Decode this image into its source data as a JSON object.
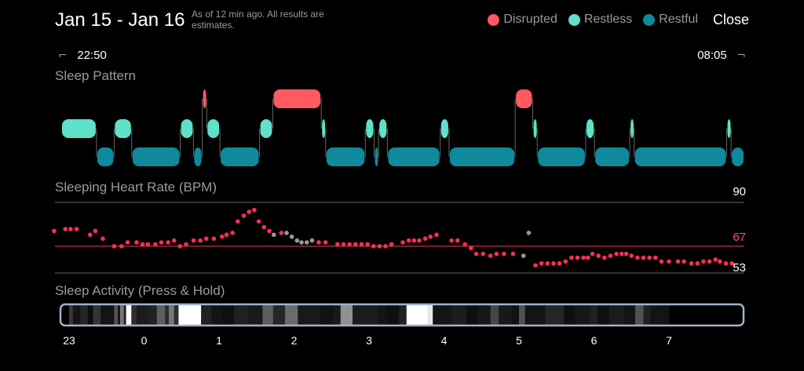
{
  "header": {
    "title": "Jan 15 - Jan 16",
    "subtitle": "As of 12 min ago. All results are estimates.",
    "close_label": "Close"
  },
  "legend": [
    {
      "label": "Disrupted",
      "color": "#ff5a5f"
    },
    {
      "label": "Restless",
      "color": "#5fe0c8"
    },
    {
      "label": "Restful",
      "color": "#0e8a9c"
    }
  ],
  "times": {
    "start": "22:50",
    "end": "08:05"
  },
  "sleep_pattern": {
    "label": "Sleep Pattern",
    "segments": [
      {
        "state": "restless",
        "start": 0.0,
        "end": 0.08
      },
      {
        "state": "restful",
        "start": 0.08,
        "end": 0.12
      },
      {
        "state": "restless",
        "start": 0.12,
        "end": 0.16
      },
      {
        "state": "restful",
        "start": 0.16,
        "end": 0.27
      },
      {
        "state": "restless",
        "start": 0.27,
        "end": 0.3
      },
      {
        "state": "restful",
        "start": 0.3,
        "end": 0.32
      },
      {
        "state": "disrupted",
        "start": 0.32,
        "end": 0.33
      },
      {
        "state": "restless",
        "start": 0.33,
        "end": 0.36
      },
      {
        "state": "restful",
        "start": 0.36,
        "end": 0.45
      },
      {
        "state": "restless",
        "start": 0.45,
        "end": 0.48
      },
      {
        "state": "disrupted",
        "start": 0.48,
        "end": 0.59
      },
      {
        "state": "restless",
        "start": 0.59,
        "end": 0.6
      },
      {
        "state": "restful",
        "start": 0.6,
        "end": 0.69
      },
      {
        "state": "restless",
        "start": 0.69,
        "end": 0.71
      },
      {
        "state": "restful",
        "start": 0.71,
        "end": 0.72
      },
      {
        "state": "restless",
        "start": 0.72,
        "end": 0.74
      },
      {
        "state": "restful",
        "start": 0.74,
        "end": 0.86
      },
      {
        "state": "restless",
        "start": 0.86,
        "end": 0.88
      },
      {
        "state": "restful",
        "start": 0.88,
        "end": 1.03
      },
      {
        "state": "disrupted",
        "start": 1.03,
        "end": 1.07
      },
      {
        "state": "restless",
        "start": 1.07,
        "end": 1.08
      },
      {
        "state": "restful",
        "start": 1.08,
        "end": 1.19
      },
      {
        "state": "restless",
        "start": 1.19,
        "end": 1.21
      },
      {
        "state": "restful",
        "start": 1.21,
        "end": 1.29
      },
      {
        "state": "restless",
        "start": 1.29,
        "end": 1.3
      },
      {
        "state": "restful",
        "start": 1.3,
        "end": 1.51
      },
      {
        "state": "restless",
        "start": 1.51,
        "end": 1.52
      },
      {
        "state": "restful",
        "start": 1.52,
        "end": 1.55
      }
    ]
  },
  "heart_rate": {
    "label": "Sleeping Heart Rate (BPM)",
    "max_label": "90",
    "avg_label": "67",
    "min_label": "53",
    "max": 90,
    "avg": 67,
    "min": 53,
    "points": [
      {
        "t": 22.8,
        "bpm": 75
      },
      {
        "t": 22.95,
        "bpm": 76
      },
      {
        "t": 23.02,
        "bpm": 76
      },
      {
        "t": 23.1,
        "bpm": 76
      },
      {
        "t": 23.28,
        "bpm": 73
      },
      {
        "t": 23.35,
        "bpm": 75
      },
      {
        "t": 23.45,
        "bpm": 71
      },
      {
        "t": 23.6,
        "bpm": 67
      },
      {
        "t": 23.7,
        "bpm": 67
      },
      {
        "t": 23.78,
        "bpm": 69
      },
      {
        "t": 23.9,
        "bpm": 69
      },
      {
        "t": 23.98,
        "bpm": 68
      },
      {
        "t": 24.05,
        "bpm": 68
      },
      {
        "t": 24.15,
        "bpm": 68
      },
      {
        "t": 24.23,
        "bpm": 69
      },
      {
        "t": 24.32,
        "bpm": 69
      },
      {
        "t": 24.4,
        "bpm": 70
      },
      {
        "t": 24.48,
        "bpm": 67
      },
      {
        "t": 24.56,
        "bpm": 68
      },
      {
        "t": 24.66,
        "bpm": 70
      },
      {
        "t": 24.75,
        "bpm": 70
      },
      {
        "t": 24.83,
        "bpm": 71
      },
      {
        "t": 24.93,
        "bpm": 71
      },
      {
        "t": 25.04,
        "bpm": 72
      },
      {
        "t": 25.1,
        "bpm": 73
      },
      {
        "t": 25.18,
        "bpm": 74
      },
      {
        "t": 25.25,
        "bpm": 80
      },
      {
        "t": 25.33,
        "bpm": 83
      },
      {
        "t": 25.4,
        "bpm": 85
      },
      {
        "t": 25.47,
        "bpm": 86
      },
      {
        "t": 25.53,
        "bpm": 80
      },
      {
        "t": 25.6,
        "bpm": 77
      },
      {
        "t": 25.67,
        "bpm": 75
      },
      {
        "t": 25.73,
        "bpm": 73,
        "grey": true
      },
      {
        "t": 25.83,
        "bpm": 74
      },
      {
        "t": 25.9,
        "bpm": 74,
        "grey": true
      },
      {
        "t": 25.97,
        "bpm": 72,
        "grey": true
      },
      {
        "t": 26.04,
        "bpm": 70,
        "grey": true
      },
      {
        "t": 26.1,
        "bpm": 69,
        "grey": true
      },
      {
        "t": 26.17,
        "bpm": 69,
        "grey": true
      },
      {
        "t": 26.24,
        "bpm": 70,
        "grey": true
      },
      {
        "t": 26.33,
        "bpm": 69
      },
      {
        "t": 26.42,
        "bpm": 69
      },
      {
        "t": 26.58,
        "bpm": 68
      },
      {
        "t": 26.66,
        "bpm": 68
      },
      {
        "t": 26.74,
        "bpm": 68
      },
      {
        "t": 26.82,
        "bpm": 68
      },
      {
        "t": 26.9,
        "bpm": 68
      },
      {
        "t": 26.98,
        "bpm": 68
      },
      {
        "t": 27.06,
        "bpm": 67
      },
      {
        "t": 27.14,
        "bpm": 67
      },
      {
        "t": 27.22,
        "bpm": 67
      },
      {
        "t": 27.3,
        "bpm": 68
      },
      {
        "t": 27.45,
        "bpm": 69
      },
      {
        "t": 27.53,
        "bpm": 70
      },
      {
        "t": 27.6,
        "bpm": 70
      },
      {
        "t": 27.67,
        "bpm": 70
      },
      {
        "t": 27.75,
        "bpm": 71
      },
      {
        "t": 27.82,
        "bpm": 72
      },
      {
        "t": 27.9,
        "bpm": 73
      },
      {
        "t": 28.1,
        "bpm": 70
      },
      {
        "t": 28.18,
        "bpm": 70
      },
      {
        "t": 28.28,
        "bpm": 68
      },
      {
        "t": 28.36,
        "bpm": 66
      },
      {
        "t": 28.43,
        "bpm": 63
      },
      {
        "t": 28.52,
        "bpm": 63
      },
      {
        "t": 28.62,
        "bpm": 62
      },
      {
        "t": 28.7,
        "bpm": 63
      },
      {
        "t": 28.8,
        "bpm": 63
      },
      {
        "t": 28.92,
        "bpm": 63
      },
      {
        "t": 29.06,
        "bpm": 62,
        "grey": true
      },
      {
        "t": 29.13,
        "bpm": 74,
        "grey": true
      },
      {
        "t": 29.22,
        "bpm": 57
      },
      {
        "t": 29.3,
        "bpm": 58
      },
      {
        "t": 29.38,
        "bpm": 58
      },
      {
        "t": 29.46,
        "bpm": 58
      },
      {
        "t": 29.54,
        "bpm": 58
      },
      {
        "t": 29.62,
        "bpm": 59
      },
      {
        "t": 29.7,
        "bpm": 61
      },
      {
        "t": 29.78,
        "bpm": 61
      },
      {
        "t": 29.86,
        "bpm": 61
      },
      {
        "t": 29.92,
        "bpm": 61
      },
      {
        "t": 29.98,
        "bpm": 63
      },
      {
        "t": 30.06,
        "bpm": 62
      },
      {
        "t": 30.14,
        "bpm": 61
      },
      {
        "t": 30.22,
        "bpm": 62
      },
      {
        "t": 30.3,
        "bpm": 63
      },
      {
        "t": 30.37,
        "bpm": 63
      },
      {
        "t": 30.43,
        "bpm": 63
      },
      {
        "t": 30.5,
        "bpm": 62
      },
      {
        "t": 30.58,
        "bpm": 61
      },
      {
        "t": 30.66,
        "bpm": 61
      },
      {
        "t": 30.74,
        "bpm": 61
      },
      {
        "t": 30.82,
        "bpm": 61
      },
      {
        "t": 30.9,
        "bpm": 59
      },
      {
        "t": 31.0,
        "bpm": 59
      },
      {
        "t": 31.12,
        "bpm": 59
      },
      {
        "t": 31.2,
        "bpm": 59
      },
      {
        "t": 31.3,
        "bpm": 58
      },
      {
        "t": 31.38,
        "bpm": 58
      },
      {
        "t": 31.46,
        "bpm": 59
      },
      {
        "t": 31.54,
        "bpm": 59
      },
      {
        "t": 31.62,
        "bpm": 60
      },
      {
        "t": 31.68,
        "bpm": 59
      },
      {
        "t": 31.76,
        "bpm": 58
      },
      {
        "t": 31.84,
        "bpm": 58
      }
    ]
  },
  "sleep_activity": {
    "label": "Sleep Activity (Press & Hold)",
    "hours": [
      "23",
      "0",
      "1",
      "2",
      "3",
      "4",
      "5",
      "6",
      "7"
    ],
    "bands": [
      {
        "start": 0.0,
        "end": 0.05,
        "level": 0.2
      },
      {
        "start": 0.05,
        "end": 0.15,
        "level": 0.05
      },
      {
        "start": 0.15,
        "end": 0.25,
        "level": 0.12
      },
      {
        "start": 0.25,
        "end": 0.32,
        "level": 0.02
      },
      {
        "start": 0.32,
        "end": 0.42,
        "level": 0.18
      },
      {
        "start": 0.42,
        "end": 0.6,
        "level": 0.05
      },
      {
        "start": 0.6,
        "end": 0.65,
        "level": 0.3
      },
      {
        "start": 0.65,
        "end": 0.68,
        "level": 0.05
      },
      {
        "start": 0.68,
        "end": 0.73,
        "level": 0.45
      },
      {
        "start": 0.73,
        "end": 0.76,
        "level": 0.1
      },
      {
        "start": 0.76,
        "end": 0.83,
        "level": 1.0
      },
      {
        "start": 0.83,
        "end": 0.9,
        "level": 0.15
      },
      {
        "start": 0.9,
        "end": 1.05,
        "level": 0.08
      },
      {
        "start": 1.05,
        "end": 1.17,
        "level": 0.1
      },
      {
        "start": 1.17,
        "end": 1.28,
        "level": 0.35
      },
      {
        "start": 1.28,
        "end": 1.33,
        "level": 0.15
      },
      {
        "start": 1.33,
        "end": 1.4,
        "level": 0.45
      },
      {
        "start": 1.4,
        "end": 1.46,
        "level": 0.15
      },
      {
        "start": 1.46,
        "end": 1.55,
        "level": 1.0
      },
      {
        "start": 1.55,
        "end": 1.76,
        "level": 1.0
      },
      {
        "start": 1.76,
        "end": 1.9,
        "level": 0.1
      },
      {
        "start": 1.9,
        "end": 2.05,
        "level": 0.05
      },
      {
        "start": 2.05,
        "end": 2.2,
        "level": 0.03
      },
      {
        "start": 2.2,
        "end": 2.38,
        "level": 0.1
      },
      {
        "start": 2.38,
        "end": 2.58,
        "level": 0.07
      },
      {
        "start": 2.58,
        "end": 2.72,
        "level": 0.35
      },
      {
        "start": 2.72,
        "end": 2.88,
        "level": 0.12
      },
      {
        "start": 2.88,
        "end": 3.05,
        "level": 0.4
      },
      {
        "start": 3.05,
        "end": 3.35,
        "level": 0.07
      },
      {
        "start": 3.35,
        "end": 3.52,
        "level": 0.04
      },
      {
        "start": 3.52,
        "end": 3.62,
        "level": 0.07
      },
      {
        "start": 3.62,
        "end": 3.78,
        "level": 0.55
      },
      {
        "start": 3.78,
        "end": 4.12,
        "level": 0.08
      },
      {
        "start": 4.12,
        "end": 4.24,
        "level": 0.05
      },
      {
        "start": 4.24,
        "end": 4.4,
        "level": 0.03
      },
      {
        "start": 4.4,
        "end": 4.5,
        "level": 0.1
      },
      {
        "start": 4.5,
        "end": 4.78,
        "level": 1.0
      },
      {
        "start": 4.78,
        "end": 4.85,
        "level": 0.9
      },
      {
        "start": 4.85,
        "end": 5.1,
        "level": 0.05
      },
      {
        "start": 5.1,
        "end": 5.3,
        "level": 0.08
      },
      {
        "start": 5.3,
        "end": 5.45,
        "level": 0.03
      },
      {
        "start": 5.45,
        "end": 5.62,
        "level": 0.06
      },
      {
        "start": 5.62,
        "end": 5.73,
        "level": 0.25
      },
      {
        "start": 5.73,
        "end": 5.9,
        "level": 0.07
      },
      {
        "start": 5.9,
        "end": 6.0,
        "level": 0.04
      },
      {
        "start": 6.0,
        "end": 6.08,
        "level": 0.3
      },
      {
        "start": 6.08,
        "end": 6.35,
        "level": 0.05
      },
      {
        "start": 6.35,
        "end": 6.6,
        "level": 0.12
      },
      {
        "start": 6.6,
        "end": 6.75,
        "level": 0.03
      },
      {
        "start": 6.75,
        "end": 6.95,
        "level": 0.06
      },
      {
        "start": 6.95,
        "end": 7.05,
        "level": 0.1
      },
      {
        "start": 7.05,
        "end": 7.2,
        "level": 0.03
      },
      {
        "start": 7.2,
        "end": 7.4,
        "level": 0.08
      },
      {
        "start": 7.4,
        "end": 7.55,
        "level": 0.05
      },
      {
        "start": 7.55,
        "end": 7.66,
        "level": 0.3
      },
      {
        "start": 7.66,
        "end": 7.75,
        "level": 0.1
      },
      {
        "start": 7.75,
        "end": 8.0,
        "level": 0.05
      }
    ]
  }
}
